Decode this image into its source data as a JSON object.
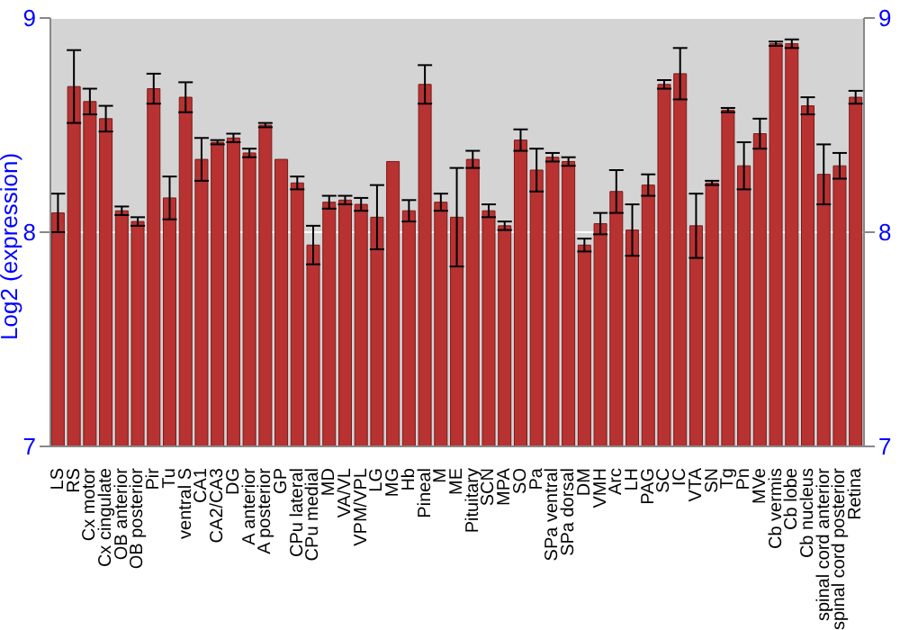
{
  "chart_data": {
    "type": "bar",
    "ylabel": "Log2 (expression)",
    "categories": [
      "LS",
      "RS",
      "Cx motor",
      "Cx cingulate",
      "OB anterior",
      "OB posterior",
      "Pir",
      "Tu",
      "ventral S",
      "CA1",
      "CA2/CA3",
      "DG",
      "A anterior",
      "A posterior",
      "GP",
      "CPu lateral",
      "CPu medial",
      "MD",
      "VA/VL",
      "VPM/VPL",
      "LG",
      "MG",
      "Hb",
      "Pineal",
      "M",
      "ME",
      "Pituitary",
      "SCN",
      "MPA",
      "SO",
      "Pa",
      "SPa ventral",
      "SPa dorsal",
      "DM",
      "VMH",
      "Arc",
      "LH",
      "PAG",
      "SC",
      "IC",
      "VTA",
      "SN",
      "Tg",
      "Pn",
      "MVe",
      "Cb vermis",
      "Cb lobe",
      "Cb nucleus",
      "spinal cord anterior",
      "spinal cord posterior",
      "Retina"
    ],
    "values": [
      8.09,
      8.68,
      8.61,
      8.53,
      8.1,
      8.05,
      8.67,
      8.16,
      8.63,
      8.34,
      8.42,
      8.44,
      8.37,
      8.5,
      8.34,
      8.23,
      7.94,
      8.14,
      8.15,
      8.13,
      8.07,
      8.33,
      8.1,
      8.69,
      8.14,
      8.07,
      8.34,
      8.1,
      8.03,
      8.43,
      8.29,
      8.35,
      8.33,
      7.94,
      8.04,
      8.19,
      8.01,
      8.22,
      8.69,
      8.74,
      8.03,
      8.23,
      8.57,
      8.31,
      8.46,
      8.88,
      8.88,
      8.59,
      8.27,
      8.31,
      8.63
    ],
    "errors": [
      0.09,
      0.17,
      0.06,
      0.06,
      0.02,
      0.02,
      0.07,
      0.1,
      0.07,
      0.1,
      0.01,
      0.02,
      0.02,
      0.01,
      null,
      0.03,
      0.09,
      0.03,
      0.02,
      0.03,
      0.15,
      null,
      0.05,
      0.09,
      0.04,
      0.23,
      0.04,
      0.03,
      0.02,
      0.05,
      0.1,
      0.02,
      0.02,
      0.03,
      0.05,
      0.1,
      0.12,
      0.05,
      0.02,
      0.12,
      0.15,
      0.01,
      0.01,
      0.11,
      0.07,
      0.01,
      0.02,
      0.04,
      0.14,
      0.06,
      0.03
    ],
    "color": "#b83232",
    "ylim": [
      7,
      9
    ],
    "yticks": [
      7,
      8,
      9
    ],
    "y2lim": [
      7,
      9
    ],
    "y2ticks": [
      7,
      8,
      9
    ],
    "grid": "y"
  }
}
